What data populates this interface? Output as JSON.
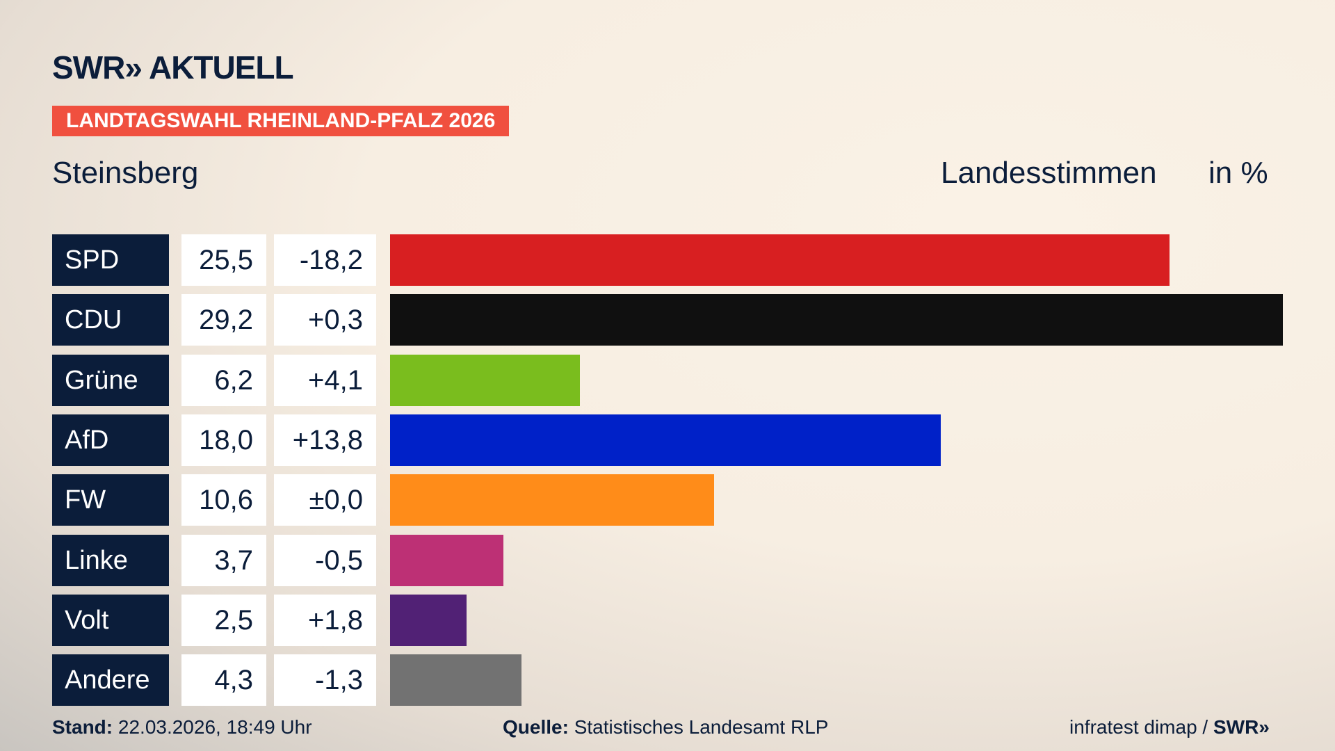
{
  "header": {
    "logo": "SWR» AKTUELL",
    "tag": "LANDTAGSWAHL RHEINLAND-PFALZ 2026",
    "region": "Steinsberg",
    "vote_type": "Landesstimmen",
    "unit": "in %"
  },
  "chart_data": {
    "type": "bar",
    "orientation": "horizontal",
    "categories": [
      "SPD",
      "CDU",
      "Grüne",
      "AfD",
      "FW",
      "Linke",
      "Volt",
      "Andere"
    ],
    "values": [
      25.5,
      29.2,
      6.2,
      18.0,
      10.6,
      3.7,
      2.5,
      4.3
    ],
    "values_label": [
      "25,5",
      "29,2",
      "6,2",
      "18,0",
      "10,6",
      "3,7",
      "2,5",
      "4,3"
    ],
    "changes": [
      "-18,2",
      "+0,3",
      "+4,1",
      "+13,8",
      "±0,0",
      "-0,5",
      "+1,8",
      "-1,3"
    ],
    "colors": [
      "#d81f21",
      "#101010",
      "#7abd1e",
      "#0021c8",
      "#ff8c19",
      "#bd3075",
      "#512175",
      "#727272"
    ]
  },
  "footer": {
    "stand_label": "Stand:",
    "stand_value": "22.03.2026, 18:49 Uhr",
    "source_label": "Quelle:",
    "source_value": "Statistisches Landesamt RLP",
    "credit": "infratest dimap /",
    "credit_logo": "SWR»"
  }
}
